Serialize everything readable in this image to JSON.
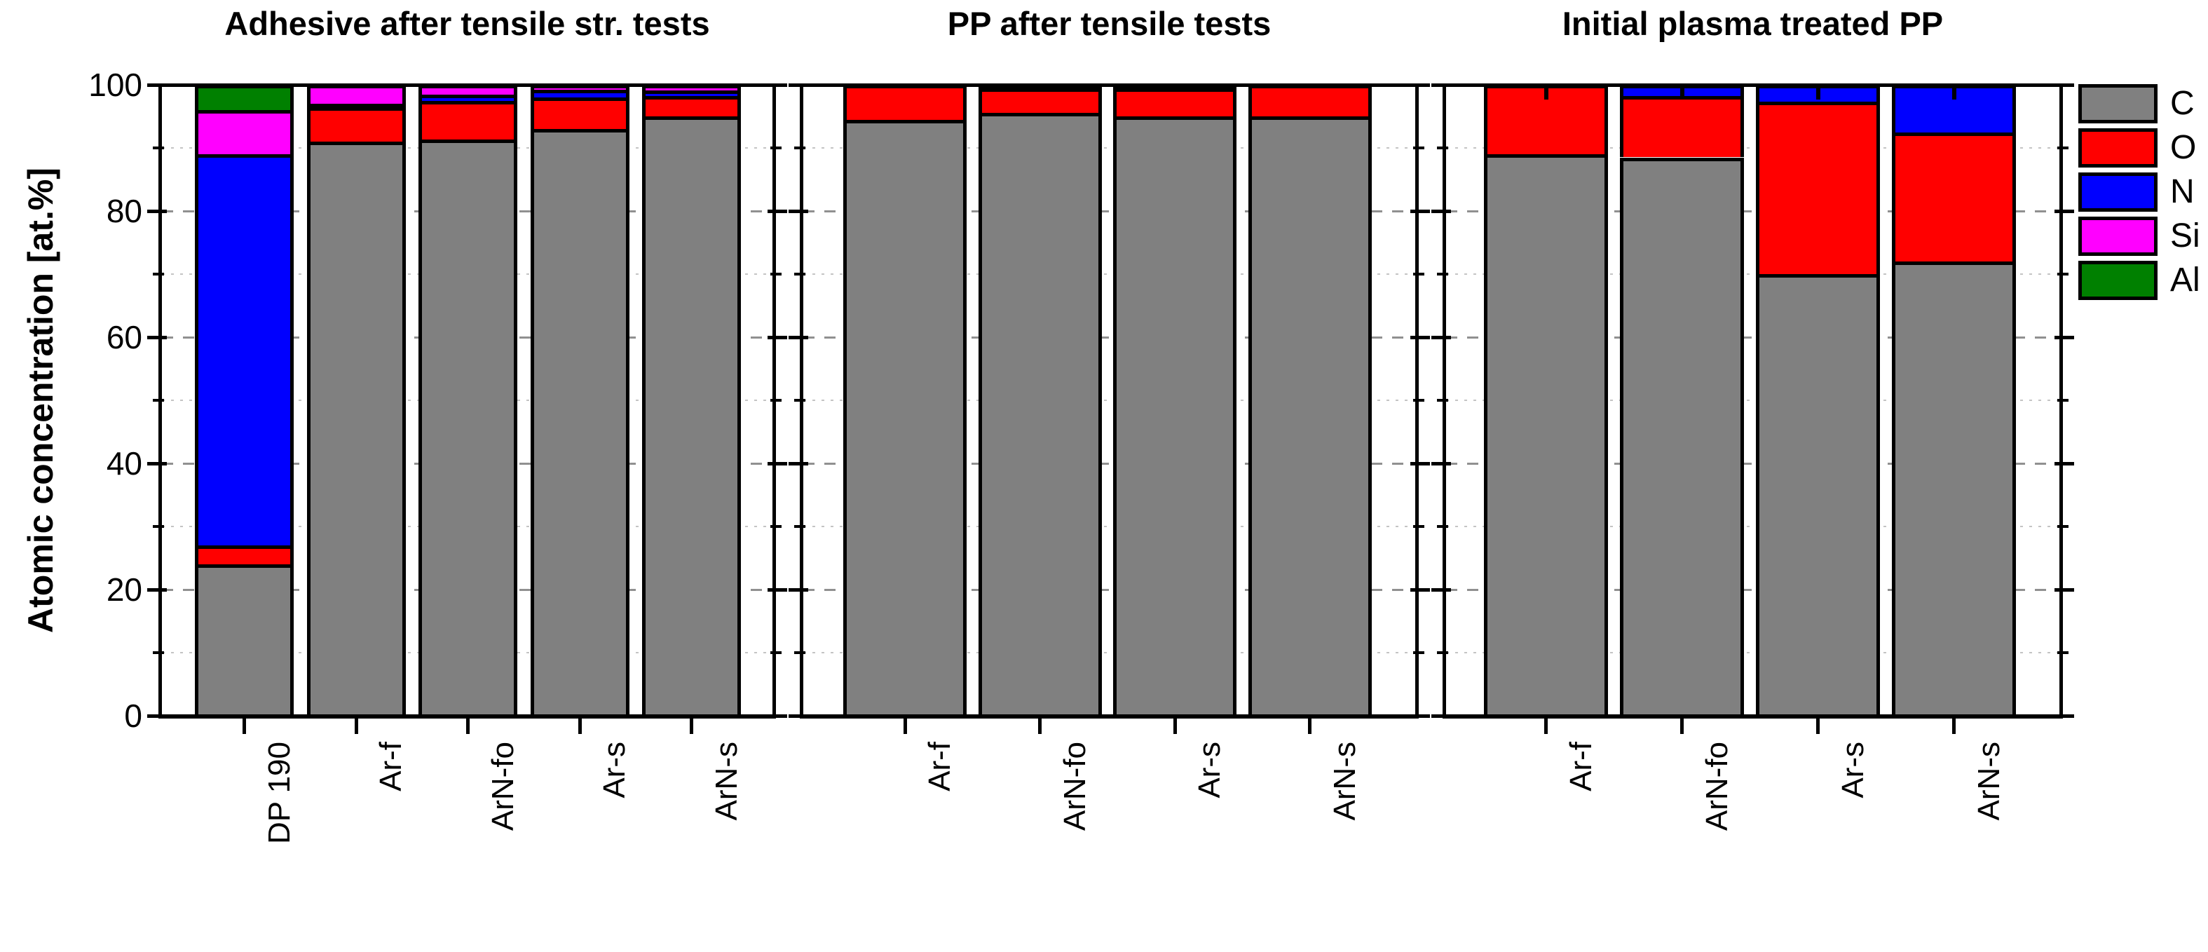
{
  "figure": {
    "ylabel": "Atomic concentration [at.%]",
    "background": "#ffffff"
  },
  "legend": {
    "entries": [
      {
        "label": "C",
        "color": "#808080"
      },
      {
        "label": "O",
        "color": "#ff0000"
      },
      {
        "label": "N",
        "color": "#0000ff"
      },
      {
        "label": "Si",
        "color": "#ff00ff"
      },
      {
        "label": "Al",
        "color": "#008000"
      }
    ]
  },
  "chart_data": {
    "type": "bar",
    "stacked": true,
    "ylabel": "Atomic concentration [at.%]",
    "ylim": [
      0,
      100
    ],
    "yticks_major": [
      0,
      20,
      40,
      60,
      80,
      100
    ],
    "yticks_minor": [
      10,
      30,
      50,
      70,
      90
    ],
    "grid": "horizontal; dashed gray at major ticks, dotted light gray at minor ticks",
    "legend_position": "right-outside",
    "elements": [
      "C",
      "O",
      "N",
      "Si",
      "Al"
    ],
    "colors": {
      "C": "#808080",
      "O": "#ff0000",
      "N": "#0000ff",
      "Si": "#ff00ff",
      "Al": "#008000"
    },
    "panels": [
      {
        "title": "Adhesive after tensile str. tests",
        "categories": [
          "DP 190",
          "Ar-f",
          "ArN-fo",
          "Ar-s",
          "ArN-s"
        ],
        "values": [
          {
            "C": 24,
            "O": 3,
            "N": 62,
            "Si": 7,
            "Al": 4
          },
          {
            "C": 91,
            "O": 5.4,
            "N": 0.6,
            "Si": 3,
            "Al": 0
          },
          {
            "C": 91.3,
            "O": 6.2,
            "N": 1.0,
            "Si": 1.5,
            "Al": 0
          },
          {
            "C": 93,
            "O": 5.0,
            "N": 1.2,
            "Si": 0.8,
            "Al": 0
          },
          {
            "C": 95,
            "O": 3.2,
            "N": 0.9,
            "Si": 0.9,
            "Al": 0
          }
        ],
        "error_whiskers": false
      },
      {
        "title": "PP after tensile tests",
        "categories": [
          "Ar-f",
          "ArN-fo",
          "Ar-s",
          "ArN-s"
        ],
        "values": [
          {
            "C": 94.5,
            "O": 5.5,
            "N": 0,
            "Si": 0,
            "Al": 0
          },
          {
            "C": 95.6,
            "O": 3.9,
            "N": 0,
            "Si": 0.5,
            "Al": 0
          },
          {
            "C": 95,
            "O": 4.5,
            "N": 0.5,
            "Si": 0,
            "Al": 0
          },
          {
            "C": 95,
            "O": 5.0,
            "N": 0,
            "Si": 0,
            "Al": 0
          }
        ],
        "error_whiskers": false
      },
      {
        "title": "Initial plasma treated PP",
        "categories": [
          "Ar-f",
          "ArN-fo",
          "Ar-s",
          "ArN-s"
        ],
        "values": [
          {
            "C": 89,
            "O": 11,
            "N": 0,
            "Si": 0,
            "Al": 0
          },
          {
            "C": 88.5,
            "O": 9.7,
            "N": 1.8,
            "Si": 0,
            "Al": 0
          },
          {
            "C": 70,
            "O": 27.3,
            "N": 2.7,
            "Si": 0,
            "Al": 0
          },
          {
            "C": 72,
            "O": 20.5,
            "N": 7.5,
            "Si": 0,
            "Al": 0
          }
        ],
        "error_whiskers": true
      }
    ]
  }
}
